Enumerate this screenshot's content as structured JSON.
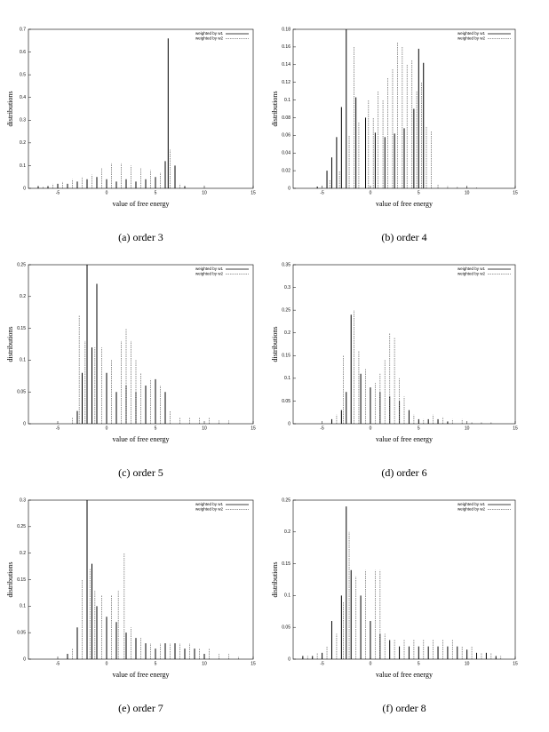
{
  "chart_data": [
    {
      "type": "impulse",
      "caption": "(a) order 3",
      "xlabel": "value of free energy",
      "ylabel": "distributions",
      "xlim": [
        -8,
        15
      ],
      "xticks": [
        -5,
        0,
        5,
        10,
        15
      ],
      "ylim": [
        0,
        0.7
      ],
      "yticks": [
        0,
        0.1,
        0.2,
        0.3,
        0.4,
        0.5,
        0.6,
        0.7
      ],
      "legend": "upper right",
      "series": [
        {
          "name": "weighted by w1",
          "color": "#000000",
          "dashed": false,
          "x": [
            -7,
            -6,
            -5,
            -4,
            -3,
            -2,
            -1,
            0,
            1,
            2,
            3,
            4,
            5,
            6,
            6.3,
            7,
            8
          ],
          "values": [
            0.01,
            0.01,
            0.02,
            0.02,
            0.03,
            0.04,
            0.05,
            0.04,
            0.03,
            0.04,
            0.03,
            0.04,
            0.05,
            0.12,
            0.66,
            0.1,
            0.01
          ]
        },
        {
          "name": "weighted by w2",
          "color": "#777777",
          "dashed": true,
          "x": [
            -6.5,
            -5.5,
            -4.5,
            -3.5,
            -2.5,
            -1.5,
            -0.5,
            0.5,
            1.5,
            2.5,
            3.5,
            4.5,
            5.5,
            6.5,
            7.5
          ],
          "values": [
            0.01,
            0.02,
            0.03,
            0.04,
            0.05,
            0.06,
            0.09,
            0.11,
            0.11,
            0.1,
            0.09,
            0.08,
            0.07,
            0.17,
            0.02
          ]
        }
      ]
    },
    {
      "type": "impulse",
      "caption": "(b) order 4",
      "xlabel": "value of free energy",
      "ylabel": "distributions",
      "xlim": [
        -8,
        15
      ],
      "xticks": [
        -5,
        0,
        5,
        10,
        15
      ],
      "ylim": [
        0,
        0.18
      ],
      "yticks": [
        0,
        0.02,
        0.04,
        0.06,
        0.08,
        0.1,
        0.12,
        0.14,
        0.16,
        0.18
      ],
      "legend": "upper right",
      "series": [
        {
          "name": "weighted by w1",
          "color": "#000000",
          "dashed": false,
          "x": [
            -5.5,
            -4.5,
            -4,
            -3.5,
            -3,
            -2.5,
            -1.5,
            -0.5,
            0.5,
            1.5,
            2.5,
            3.5,
            4.5,
            5,
            5.5
          ],
          "values": [
            0.002,
            0.02,
            0.035,
            0.058,
            0.092,
            0.18,
            0.103,
            0.08,
            0.063,
            0.058,
            0.062,
            0.068,
            0.09,
            0.158,
            0.142
          ]
        },
        {
          "name": "weighted by w2",
          "color": "#777777",
          "dashed": true,
          "x": [
            -4.2,
            -3.2,
            -2.2,
            -1.7,
            -1.2,
            -0.2,
            0.3,
            0.8,
            1.3,
            1.8,
            2.3,
            2.8,
            3.3,
            3.8,
            4.3,
            4.8,
            5.3,
            5.8,
            6.3,
            7,
            8,
            9,
            10,
            11
          ],
          "values": [
            0.01,
            0.02,
            0.06,
            0.16,
            0.075,
            0.1,
            0.08,
            0.11,
            0.1,
            0.125,
            0.135,
            0.165,
            0.16,
            0.14,
            0.145,
            0.11,
            0.12,
            0.07,
            0.065,
            0.005,
            0.003,
            0.002,
            0.002,
            0.001
          ]
        }
      ]
    },
    {
      "type": "impulse",
      "caption": "(c) order 5",
      "xlabel": "value of free energy",
      "ylabel": "distributions",
      "xlim": [
        -8,
        15
      ],
      "xticks": [
        -5,
        0,
        5,
        10,
        15
      ],
      "ylim": [
        0,
        0.25
      ],
      "yticks": [
        0,
        0.05,
        0.1,
        0.15,
        0.2,
        0.25
      ],
      "legend": "upper right",
      "series": [
        {
          "name": "weighted by w1",
          "color": "#000000",
          "dashed": false,
          "x": [
            -3,
            -2.5,
            -2,
            -1.5,
            -1,
            0,
            1,
            2,
            3,
            4,
            5,
            6
          ],
          "values": [
            0.02,
            0.08,
            0.25,
            0.12,
            0.22,
            0.08,
            0.05,
            0.06,
            0.05,
            0.06,
            0.07,
            0.05
          ]
        },
        {
          "name": "weighted by w2",
          "color": "#777777",
          "dashed": true,
          "x": [
            -3.5,
            -2.8,
            -2.2,
            -1.2,
            -0.5,
            0.5,
            1.5,
            2,
            2.5,
            3,
            3.5,
            4.5,
            5.5,
            6.5,
            7.5,
            8.5,
            9.5,
            10.5,
            11.5,
            12.5
          ],
          "values": [
            0.01,
            0.17,
            0.13,
            0.12,
            0.12,
            0.1,
            0.13,
            0.15,
            0.13,
            0.1,
            0.08,
            0.07,
            0.06,
            0.02,
            0.01,
            0.01,
            0.01,
            0.01,
            0.005,
            0.005
          ]
        }
      ]
    },
    {
      "type": "impulse",
      "caption": "(d) order 6",
      "xlabel": "value of free energy",
      "ylabel": "distributions",
      "xlim": [
        -8,
        15
      ],
      "xticks": [
        -5,
        0,
        5,
        10,
        15
      ],
      "ylim": [
        0,
        0.35
      ],
      "yticks": [
        0,
        0.05,
        0.1,
        0.15,
        0.2,
        0.25,
        0.3,
        0.35
      ],
      "legend": "upper right",
      "series": [
        {
          "name": "weighted by w1",
          "color": "#000000",
          "dashed": false,
          "x": [
            -4,
            -3,
            -2.5,
            -2,
            -1,
            0,
            1,
            2,
            3,
            4,
            5,
            6,
            7,
            8
          ],
          "values": [
            0.01,
            0.03,
            0.07,
            0.24,
            0.11,
            0.08,
            0.07,
            0.06,
            0.05,
            0.03,
            0.01,
            0.01,
            0.01,
            0.005
          ]
        },
        {
          "name": "weighted by w2",
          "color": "#777777",
          "dashed": true,
          "x": [
            -3.5,
            -2.8,
            -1.7,
            -1.2,
            -0.5,
            0.5,
            1,
            1.5,
            2,
            2.5,
            3,
            3.5,
            4.5,
            5.5,
            6.5,
            7.5,
            8.5,
            9.5,
            10.5,
            11.5,
            12.5
          ],
          "values": [
            0.02,
            0.15,
            0.25,
            0.16,
            0.12,
            0.09,
            0.11,
            0.14,
            0.2,
            0.19,
            0.1,
            0.06,
            0.02,
            0.01,
            0.02,
            0.015,
            0.01,
            0.01,
            0.005,
            0.005,
            0.005
          ]
        }
      ]
    },
    {
      "type": "impulse",
      "caption": "(e) order 7",
      "xlabel": "value of free energy",
      "ylabel": "distributions",
      "xlim": [
        -8,
        15
      ],
      "xticks": [
        -5,
        0,
        5,
        10,
        15
      ],
      "ylim": [
        0,
        0.3
      ],
      "yticks": [
        0,
        0.05,
        0.1,
        0.15,
        0.2,
        0.25,
        0.3
      ],
      "legend": "upper right",
      "series": [
        {
          "name": "weighted by w1",
          "color": "#000000",
          "dashed": false,
          "x": [
            -4,
            -3,
            -2,
            -1.5,
            -1,
            0,
            1,
            2,
            3,
            4,
            5,
            6,
            7,
            8,
            9,
            10
          ],
          "values": [
            0.01,
            0.06,
            0.3,
            0.18,
            0.1,
            0.08,
            0.07,
            0.05,
            0.04,
            0.03,
            0.02,
            0.03,
            0.03,
            0.02,
            0.02,
            0.01
          ]
        },
        {
          "name": "weighted by w2",
          "color": "#777777",
          "dashed": true,
          "x": [
            -3.5,
            -2.5,
            -1.7,
            -1.2,
            -0.5,
            0.5,
            1.2,
            1.8,
            2.5,
            3.5,
            4.5,
            5.5,
            6.5,
            7.5,
            8.5,
            9.5,
            10.5,
            11.5,
            12.5,
            13.5
          ],
          "values": [
            0.02,
            0.15,
            0.17,
            0.13,
            0.12,
            0.12,
            0.13,
            0.2,
            0.06,
            0.04,
            0.03,
            0.03,
            0.03,
            0.03,
            0.03,
            0.02,
            0.02,
            0.01,
            0.01,
            0.005
          ]
        }
      ]
    },
    {
      "type": "impulse",
      "caption": "(f) order 8",
      "xlabel": "value of free energy",
      "ylabel": "distributions",
      "xlim": [
        -8,
        15
      ],
      "xticks": [
        -5,
        0,
        5,
        10,
        15
      ],
      "ylim": [
        0,
        0.25
      ],
      "yticks": [
        0,
        0.05,
        0.1,
        0.15,
        0.2,
        0.25
      ],
      "legend": "upper right",
      "series": [
        {
          "name": "weighted by w1",
          "color": "#000000",
          "dashed": false,
          "x": [
            -7,
            -6,
            -5,
            -4,
            -3,
            -2.5,
            -2,
            -1,
            0,
            1,
            2,
            3,
            4,
            5,
            6,
            7,
            8,
            9,
            10,
            11,
            12,
            13
          ],
          "values": [
            0.005,
            0.005,
            0.01,
            0.06,
            0.1,
            0.24,
            0.14,
            0.1,
            0.06,
            0.04,
            0.03,
            0.02,
            0.02,
            0.02,
            0.02,
            0.02,
            0.02,
            0.02,
            0.015,
            0.01,
            0.01,
            0.005
          ]
        },
        {
          "name": "weighted by w2",
          "color": "#777777",
          "dashed": true,
          "x": [
            -6.5,
            -5.5,
            -4.5,
            -3.5,
            -2.8,
            -2.2,
            -1.5,
            -0.5,
            0.5,
            1,
            1.5,
            2.5,
            3.5,
            4.5,
            5.5,
            6.5,
            7.5,
            8.5,
            9.5,
            10.5,
            11.5,
            12.5,
            13.5
          ],
          "values": [
            0.005,
            0.01,
            0.02,
            0.04,
            0.09,
            0.2,
            0.13,
            0.14,
            0.14,
            0.14,
            0.04,
            0.03,
            0.03,
            0.03,
            0.03,
            0.03,
            0.03,
            0.03,
            0.02,
            0.02,
            0.01,
            0.01,
            0.005
          ]
        }
      ]
    }
  ]
}
